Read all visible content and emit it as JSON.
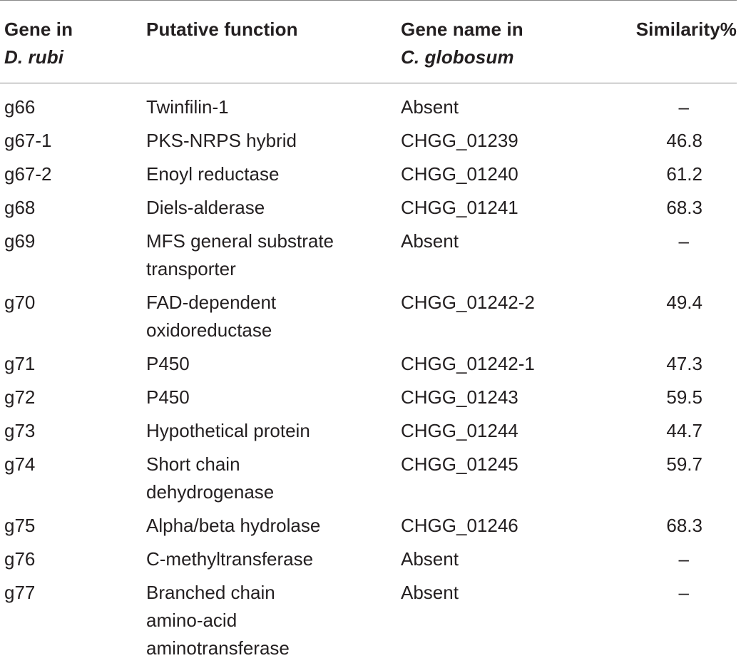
{
  "table": {
    "headers": {
      "gene_line1": "Gene in",
      "gene_line2": "D. rubi",
      "function": "Putative function",
      "name_line1": "Gene name in",
      "name_line2": "C. globosum",
      "similarity": "Similarity%"
    },
    "rows": [
      {
        "gene": "g66",
        "function": "Twinfilin-1",
        "name": "Absent",
        "similarity": "–"
      },
      {
        "gene": "g67-1",
        "function": "PKS-NRPS hybrid",
        "name": "CHGG_01239",
        "similarity": "46.8"
      },
      {
        "gene": "g67-2",
        "function": "Enoyl reductase",
        "name": "CHGG_01240",
        "similarity": "61.2"
      },
      {
        "gene": "g68",
        "function": "Diels-alderase",
        "name": "CHGG_01241",
        "similarity": "68.3"
      },
      {
        "gene": "g69",
        "function": "MFS general substrate transporter",
        "name": "Absent",
        "similarity": "–"
      },
      {
        "gene": "g70",
        "function": "FAD-dependent oxidoreductase",
        "name": "CHGG_01242-2",
        "similarity": "49.4"
      },
      {
        "gene": "g71",
        "function": "P450",
        "name": "CHGG_01242-1",
        "similarity": "47.3"
      },
      {
        "gene": "g72",
        "function": "P450",
        "name": "CHGG_01243",
        "similarity": "59.5"
      },
      {
        "gene": "g73",
        "function": "Hypothetical protein",
        "name": "CHGG_01244",
        "similarity": "44.7"
      },
      {
        "gene": "g74",
        "function": "Short chain dehydrogenase",
        "name": "CHGG_01245",
        "similarity": "59.7"
      },
      {
        "gene": "g75",
        "function": "Alpha/beta hydrolase",
        "name": "CHGG_01246",
        "similarity": "68.3"
      },
      {
        "gene": "g76",
        "function": "C-methyltransferase",
        "name": "Absent",
        "similarity": "–"
      },
      {
        "gene": "g77",
        "function": "Branched chain amino-acid aminotransferase",
        "name": "Absent",
        "similarity": "–"
      }
    ]
  }
}
